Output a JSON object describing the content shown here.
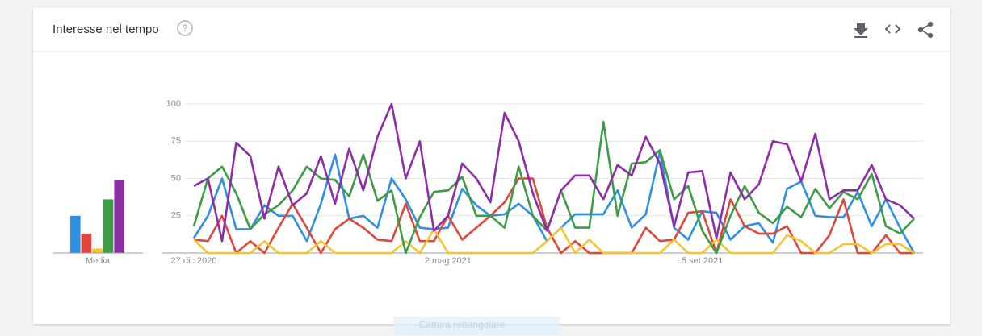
{
  "header": {
    "title": "Interesse nel tempo"
  },
  "chart_data": [
    {
      "type": "line",
      "categories": [
        "27 dic 2020",
        null,
        null,
        null,
        null,
        null,
        null,
        null,
        null,
        null,
        null,
        null,
        null,
        null,
        null,
        null,
        null,
        null,
        "2 mag 2021",
        null,
        null,
        null,
        null,
        null,
        null,
        null,
        null,
        null,
        null,
        null,
        null,
        null,
        null,
        null,
        null,
        null,
        "5 set 2021",
        null,
        null,
        null,
        null,
        null,
        null,
        null,
        null,
        null,
        null,
        null,
        null,
        null,
        null,
        null
      ],
      "ylim": [
        0,
        100
      ],
      "yticks": [
        25,
        50,
        75,
        100
      ],
      "grid": true,
      "series": [
        {
          "color": "#2f8fe2",
          "values": [
            10,
            25,
            50,
            16,
            16,
            32,
            25,
            25,
            8,
            33,
            66,
            23,
            25,
            17,
            50,
            36,
            17,
            16,
            17,
            43,
            32,
            25,
            26,
            33,
            25,
            8,
            17,
            26,
            26,
            26,
            42,
            17,
            26,
            68,
            17,
            9,
            28,
            27,
            9,
            18,
            20,
            7,
            43,
            48,
            25,
            24,
            24,
            41,
            18,
            36,
            17,
            0
          ]
        },
        {
          "color": "#e0463a",
          "values": [
            9,
            8,
            25,
            0,
            8,
            0,
            17,
            33,
            17,
            0,
            16,
            23,
            17,
            9,
            8,
            33,
            8,
            8,
            25,
            9,
            17,
            25,
            34,
            50,
            50,
            17,
            0,
            8,
            0,
            0,
            0,
            0,
            17,
            8,
            9,
            27,
            28,
            0,
            36,
            18,
            13,
            13,
            18,
            0,
            0,
            12,
            36,
            0,
            0,
            12,
            0,
            0
          ]
        },
        {
          "color": "#f6c431",
          "values": [
            9,
            0,
            0,
            0,
            0,
            8,
            0,
            0,
            0,
            8,
            0,
            0,
            0,
            0,
            0,
            8,
            0,
            16,
            0,
            0,
            0,
            0,
            0,
            0,
            0,
            8,
            17,
            0,
            9,
            0,
            0,
            0,
            0,
            0,
            9,
            0,
            0,
            9,
            0,
            0,
            0,
            0,
            12,
            8,
            0,
            0,
            6,
            6,
            0,
            6,
            6,
            0
          ]
        },
        {
          "color": "#3e9c46",
          "values": [
            18,
            50,
            58,
            40,
            16,
            26,
            32,
            42,
            58,
            50,
            49,
            38,
            66,
            35,
            42,
            0,
            24,
            41,
            42,
            51,
            25,
            25,
            17,
            58,
            25,
            15,
            42,
            17,
            17,
            88,
            25,
            60,
            61,
            69,
            36,
            45,
            15,
            0,
            25,
            45,
            27,
            20,
            31,
            24,
            43,
            30,
            41,
            36,
            53,
            18,
            13,
            23
          ]
        },
        {
          "color": "#8f2da6",
          "values": [
            45,
            50,
            8,
            74,
            65,
            23,
            58,
            32,
            40,
            65,
            33,
            70,
            42,
            78,
            100,
            50,
            75,
            15,
            25,
            60,
            50,
            34,
            94,
            75,
            40,
            15,
            42,
            52,
            52,
            36,
            59,
            52,
            78,
            60,
            18,
            54,
            55,
            10,
            54,
            36,
            46,
            75,
            73,
            48,
            80,
            36,
            42,
            42,
            59,
            36,
            32,
            23
          ]
        }
      ]
    },
    {
      "type": "bar",
      "categories": [
        "Media"
      ],
      "ylim": [
        0,
        100
      ],
      "series": [
        {
          "color": "#2f8fe2",
          "values": [
            25
          ]
        },
        {
          "color": "#e0463a",
          "values": [
            13
          ]
        },
        {
          "color": "#f6c431",
          "values": [
            3
          ]
        },
        {
          "color": "#3e9c46",
          "values": [
            36
          ]
        },
        {
          "color": "#8f2da6",
          "values": [
            49
          ]
        }
      ]
    }
  ],
  "overlay": "Cattura rettangolare"
}
